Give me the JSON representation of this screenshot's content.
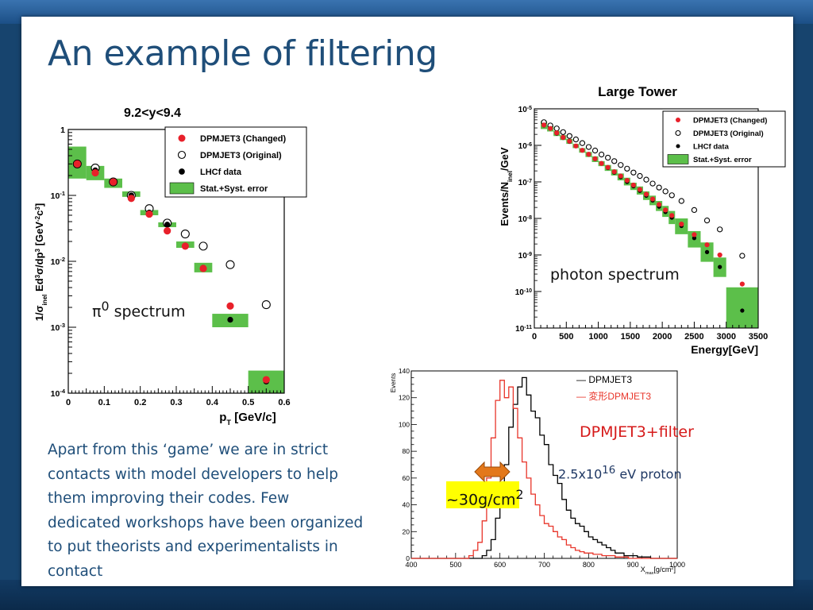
{
  "slide": {
    "title": "An example of filtering",
    "body_text": "Apart from this ‘game’ we are in strict contacts with model developers to help them improving their codes. Few dedicated workshops have been organized to put theorists and experimentalists in contact",
    "overlays": {
      "pi0_prefix": "π",
      "pi0_sup": "0",
      "pi0_suffix": " spectrum",
      "photon": "photon spectrum",
      "filter": "DPMJET3+filter",
      "proton_prefix": "2.5x10",
      "proton_sup": "16",
      "proton_suffix": " eV proton",
      "depth": "~30g/cm",
      "depth_sup": "2"
    },
    "colors": {
      "title": "#1f4e79",
      "background": "#17446e",
      "filter_text": "#d61a1a",
      "highlight": "#ffff00",
      "arrow": "#e3781b"
    }
  },
  "chart_data": [
    {
      "type": "scatter",
      "title": "9.2<y<9.4",
      "ylabel_parts": [
        "1/σ",
        "inel",
        " Ed",
        "3",
        "σ/dp",
        "3",
        " [GeV",
        "-2",
        "c",
        "3",
        "]"
      ],
      "xlabel_parts": [
        "p",
        "T",
        " [GeV/c]"
      ],
      "xlim": [
        0,
        0.6
      ],
      "ylim": [
        0.0001,
        1
      ],
      "yscale": "log",
      "x_ticks": [
        "0",
        "0.1",
        "0.2",
        "0.3",
        "0.4",
        "0.5",
        "0.6"
      ],
      "y_ticks": [
        {
          "base": "1",
          "exp": ""
        },
        {
          "base": "10",
          "exp": "-1"
        },
        {
          "base": "10",
          "exp": "-2"
        },
        {
          "base": "10",
          "exp": "-3"
        },
        {
          "base": "10",
          "exp": "-4"
        }
      ],
      "legend": [
        "DPMJET3 (Changed)",
        "DPMJET3 (Original)",
        "LHCf data",
        "Stat.+Syst. error"
      ],
      "legend_position": "top-right",
      "grid": false,
      "error_boxes": [
        {
          "x0": 0.0,
          "x1": 0.05,
          "y0": 0.18,
          "y1": 0.55
        },
        {
          "x0": 0.05,
          "x1": 0.1,
          "y0": 0.17,
          "y1": 0.28
        },
        {
          "x0": 0.1,
          "x1": 0.15,
          "y0": 0.13,
          "y1": 0.18
        },
        {
          "x0": 0.15,
          "x1": 0.2,
          "y0": 0.095,
          "y1": 0.115
        },
        {
          "x0": 0.2,
          "x1": 0.25,
          "y0": 0.05,
          "y1": 0.06
        },
        {
          "x0": 0.25,
          "x1": 0.3,
          "y0": 0.033,
          "y1": 0.039
        },
        {
          "x0": 0.3,
          "x1": 0.35,
          "y0": 0.016,
          "y1": 0.02
        },
        {
          "x0": 0.35,
          "x1": 0.4,
          "y0": 0.0068,
          "y1": 0.0095
        },
        {
          "x0": 0.4,
          "x1": 0.5,
          "y0": 0.001,
          "y1": 0.0016
        },
        {
          "x0": 0.5,
          "x1": 0.6,
          "y0": 0.0001,
          "y1": 0.00022
        }
      ],
      "series": [
        {
          "name": "DPMJET3 (Changed)",
          "marker": "filled-circle",
          "color": "#e8202a",
          "x": [
            0.025,
            0.075,
            0.125,
            0.175,
            0.225,
            0.275,
            0.325,
            0.375,
            0.45,
            0.55
          ],
          "y": [
            0.3,
            0.22,
            0.16,
            0.09,
            0.052,
            0.029,
            0.017,
            0.0078,
            0.0021,
            0.00016
          ]
        },
        {
          "name": "DPMJET3 (Original)",
          "marker": "open-circle",
          "color": "#000000",
          "x": [
            0.025,
            0.075,
            0.125,
            0.175,
            0.225,
            0.275,
            0.325,
            0.375,
            0.45,
            0.55
          ],
          "y": [
            0.3,
            0.26,
            0.16,
            0.1,
            0.063,
            0.038,
            0.026,
            0.017,
            0.0089,
            0.0022
          ]
        },
        {
          "name": "LHCf data",
          "marker": "dot",
          "color": "#000000",
          "x": [
            0.025,
            0.075,
            0.125,
            0.175,
            0.225,
            0.275,
            0.325,
            0.375,
            0.45,
            0.55
          ],
          "y": [
            0.31,
            0.24,
            0.16,
            0.1,
            0.055,
            0.036,
            0.017,
            0.008,
            0.0013,
            0.00015
          ]
        }
      ]
    },
    {
      "type": "scatter",
      "title": "Large Tower",
      "ylabel_parts": [
        "Events/N",
        "inel",
        "/GeV"
      ],
      "xlabel": "Energy[GeV]",
      "xlim": [
        0,
        3500
      ],
      "ylim": [
        1e-11,
        1e-05
      ],
      "yscale": "log",
      "x_ticks": [
        "0",
        "500",
        "1000",
        "1500",
        "2000",
        "2500",
        "3000",
        "3500"
      ],
      "y_ticks": [
        {
          "base": "10",
          "exp": "-5"
        },
        {
          "base": "10",
          "exp": "-6"
        },
        {
          "base": "10",
          "exp": "-7"
        },
        {
          "base": "10",
          "exp": "-8"
        },
        {
          "base": "10",
          "exp": "-9"
        },
        {
          "base": "10",
          "exp": "-10"
        },
        {
          "base": "10",
          "exp": "-11"
        }
      ],
      "legend": [
        "DPMJET3 (Changed)",
        "DPMJET3 (Original)",
        "LHCf data",
        "Stat.+Syst. error"
      ],
      "legend_position": "top-right",
      "grid": false,
      "error_boxes": [
        {
          "x0": 100,
          "x1": 200,
          "y0": 2.8e-06,
          "y1": 4.5e-06
        },
        {
          "x0": 200,
          "x1": 300,
          "y0": 2.4e-06,
          "y1": 3.4e-06
        },
        {
          "x0": 300,
          "x1": 400,
          "y0": 1.8e-06,
          "y1": 2.5e-06
        },
        {
          "x0": 400,
          "x1": 500,
          "y0": 1.4e-06,
          "y1": 1.9e-06
        },
        {
          "x0": 500,
          "x1": 600,
          "y0": 1.1e-06,
          "y1": 1.5e-06
        },
        {
          "x0": 600,
          "x1": 700,
          "y0": 8.4e-07,
          "y1": 1.1e-06
        },
        {
          "x0": 700,
          "x1": 800,
          "y0": 6.3e-07,
          "y1": 8.4e-07
        },
        {
          "x0": 800,
          "x1": 900,
          "y0": 4.8e-07,
          "y1": 6.6e-07
        },
        {
          "x0": 900,
          "x1": 1000,
          "y0": 3.5e-07,
          "y1": 5e-07
        },
        {
          "x0": 1000,
          "x1": 1100,
          "y0": 2.7e-07,
          "y1": 3.7e-07
        },
        {
          "x0": 1100,
          "x1": 1200,
          "y0": 2e-07,
          "y1": 2.9e-07
        },
        {
          "x0": 1200,
          "x1": 1300,
          "y0": 1.5e-07,
          "y1": 2.2e-07
        },
        {
          "x0": 1300,
          "x1": 1400,
          "y0": 1.1e-07,
          "y1": 1.7e-07
        },
        {
          "x0": 1400,
          "x1": 1500,
          "y0": 8e-08,
          "y1": 1.3e-07
        },
        {
          "x0": 1500,
          "x1": 1600,
          "y0": 6e-08,
          "y1": 9.5e-08
        },
        {
          "x0": 1600,
          "x1": 1700,
          "y0": 4.5e-08,
          "y1": 7.5e-08
        },
        {
          "x0": 1700,
          "x1": 1800,
          "y0": 3.2e-08,
          "y1": 5.5e-08
        },
        {
          "x0": 1800,
          "x1": 1900,
          "y0": 2.3e-08,
          "y1": 4.2e-08
        },
        {
          "x0": 1900,
          "x1": 2000,
          "y0": 1.6e-08,
          "y1": 3e-08
        },
        {
          "x0": 2000,
          "x1": 2100,
          "y0": 1.1e-08,
          "y1": 2.2e-08
        },
        {
          "x0": 2100,
          "x1": 2200,
          "y0": 7e-09,
          "y1": 1.6e-08
        },
        {
          "x0": 2200,
          "x1": 2400,
          "y0": 3.7e-09,
          "y1": 1e-08
        },
        {
          "x0": 2400,
          "x1": 2600,
          "y0": 1.6e-09,
          "y1": 4.5e-09
        },
        {
          "x0": 2600,
          "x1": 2800,
          "y0": 6.5e-10,
          "y1": 2.2e-09
        },
        {
          "x0": 2800,
          "x1": 3000,
          "y0": 2.5e-10,
          "y1": 8.5e-10
        },
        {
          "x0": 3000,
          "x1": 3500,
          "y0": 1e-11,
          "y1": 1.3e-10
        }
      ],
      "series": [
        {
          "name": "DPMJET3 (Changed)",
          "marker": "filled-circle",
          "color": "#e8202a",
          "x": [
            150,
            250,
            350,
            450,
            550,
            650,
            750,
            850,
            950,
            1050,
            1150,
            1250,
            1350,
            1450,
            1550,
            1650,
            1750,
            1850,
            1950,
            2050,
            2150,
            2300,
            2500,
            2700,
            2900,
            3250
          ],
          "y": [
            3.6e-06,
            2.9e-06,
            2.2e-06,
            1.65e-06,
            1.3e-06,
            9.6e-07,
            7.3e-07,
            5.7e-07,
            4.3e-07,
            3.2e-07,
            2.5e-07,
            1.9e-07,
            1.45e-07,
            1.1e-07,
            8.2e-08,
            6.2e-08,
            4.6e-08,
            3.4e-08,
            2.4e-08,
            1.7e-08,
            1.2e-08,
            7e-09,
            3.6e-09,
            1.9e-09,
            1e-09,
            1.6e-10
          ]
        },
        {
          "name": "DPMJET3 (Original)",
          "marker": "open-circle",
          "color": "#000000",
          "x": [
            150,
            250,
            350,
            450,
            550,
            650,
            750,
            850,
            950,
            1050,
            1150,
            1250,
            1350,
            1450,
            1550,
            1650,
            1750,
            1850,
            1950,
            2050,
            2150,
            2300,
            2500,
            2700,
            2900,
            3250
          ],
          "y": [
            4.3e-06,
            3.5e-06,
            2.9e-06,
            2.3e-06,
            1.8e-06,
            1.45e-06,
            1.15e-06,
            9e-07,
            7.2e-07,
            5.6e-07,
            4.6e-07,
            3.7e-07,
            2.9e-07,
            2.3e-07,
            1.8e-07,
            1.45e-07,
            1.15e-07,
            9e-08,
            7e-08,
            5.5e-08,
            4.3e-08,
            3e-08,
            1.7e-08,
            8.8e-09,
            5e-09,
            9.5e-10
          ]
        },
        {
          "name": "LHCf data",
          "marker": "dot",
          "color": "#000000",
          "x": [
            150,
            250,
            350,
            450,
            550,
            650,
            750,
            850,
            950,
            1050,
            1150,
            1250,
            1350,
            1450,
            1550,
            1650,
            1750,
            1850,
            1950,
            2050,
            2150,
            2300,
            2500,
            2700,
            2900,
            3250
          ],
          "y": [
            3.5e-06,
            2.9e-06,
            2.1e-06,
            1.6e-06,
            1.25e-06,
            9.5e-07,
            7.3e-07,
            5.6e-07,
            4.2e-07,
            3.2e-07,
            2.4e-07,
            1.8e-07,
            1.35e-07,
            1e-07,
            7.6e-08,
            5.7e-08,
            4.2e-08,
            3.1e-08,
            2.1e-08,
            1.5e-08,
            1.05e-08,
            6.2e-09,
            2.9e-09,
            1.2e-09,
            4.7e-10,
            3e-11
          ]
        }
      ]
    },
    {
      "type": "line",
      "xlabel_parts": [
        "X",
        "max",
        "[g/cm",
        "2",
        "]"
      ],
      "ylabel": "Events",
      "xlim": [
        400,
        1000
      ],
      "ylim": [
        0,
        140
      ],
      "x_ticks": [
        400,
        500,
        600,
        700,
        800,
        900,
        1000
      ],
      "y_ticks": [
        0,
        20,
        40,
        60,
        80,
        100,
        120,
        140
      ],
      "legend": [
        "— DPMJET3",
        "— 変形DPMJET3"
      ],
      "legend_position": "top-right",
      "grid": false,
      "series": [
        {
          "name": "DPMJET3",
          "color": "#000000",
          "step": 10,
          "x": [
            400,
            410,
            420,
            430,
            440,
            450,
            460,
            470,
            480,
            490,
            500,
            510,
            520,
            530,
            540,
            550,
            560,
            570,
            580,
            590,
            600,
            610,
            620,
            630,
            640,
            650,
            660,
            670,
            680,
            690,
            700,
            710,
            720,
            730,
            740,
            750,
            760,
            770,
            780,
            790,
            800,
            810,
            820,
            830,
            840,
            850,
            860,
            870,
            880,
            890,
            900,
            910,
            920,
            930,
            940,
            950,
            960,
            970,
            980,
            990
          ],
          "y": [
            0,
            0,
            0,
            0,
            0,
            0,
            0,
            0,
            0,
            0,
            0,
            0,
            0,
            0,
            0,
            0,
            2,
            6,
            14,
            30,
            48,
            70,
            98,
            115,
            128,
            135,
            122,
            110,
            105,
            92,
            85,
            70,
            62,
            56,
            44,
            36,
            30,
            26,
            24,
            20,
            16,
            14,
            12,
            10,
            8,
            6,
            4,
            4,
            2,
            2,
            2,
            1,
            1,
            1,
            0,
            0,
            0,
            0,
            0,
            0
          ]
        },
        {
          "name": "変形DPMJET3",
          "color": "#e8352a",
          "step": 10,
          "x": [
            400,
            410,
            420,
            430,
            440,
            450,
            460,
            470,
            480,
            490,
            500,
            510,
            520,
            530,
            540,
            550,
            560,
            570,
            580,
            590,
            600,
            610,
            620,
            630,
            640,
            650,
            660,
            670,
            680,
            690,
            700,
            710,
            720,
            730,
            740,
            750,
            760,
            770,
            780,
            790,
            800,
            810,
            820,
            830,
            840,
            850,
            860,
            870,
            880,
            890,
            900,
            910,
            920,
            930,
            940,
            950,
            960,
            970,
            980,
            990
          ],
          "y": [
            0,
            0,
            0,
            0,
            0,
            0,
            0,
            0,
            0,
            0,
            0,
            0,
            0,
            2,
            6,
            12,
            28,
            60,
            90,
            118,
            133,
            120,
            128,
            112,
            90,
            72,
            60,
            48,
            40,
            32,
            26,
            24,
            20,
            16,
            14,
            10,
            8,
            6,
            5,
            4,
            4,
            3,
            3,
            2,
            2,
            2,
            1,
            1,
            1,
            0,
            0,
            0,
            0,
            0,
            0,
            0,
            0,
            0,
            0,
            0
          ]
        }
      ]
    }
  ]
}
